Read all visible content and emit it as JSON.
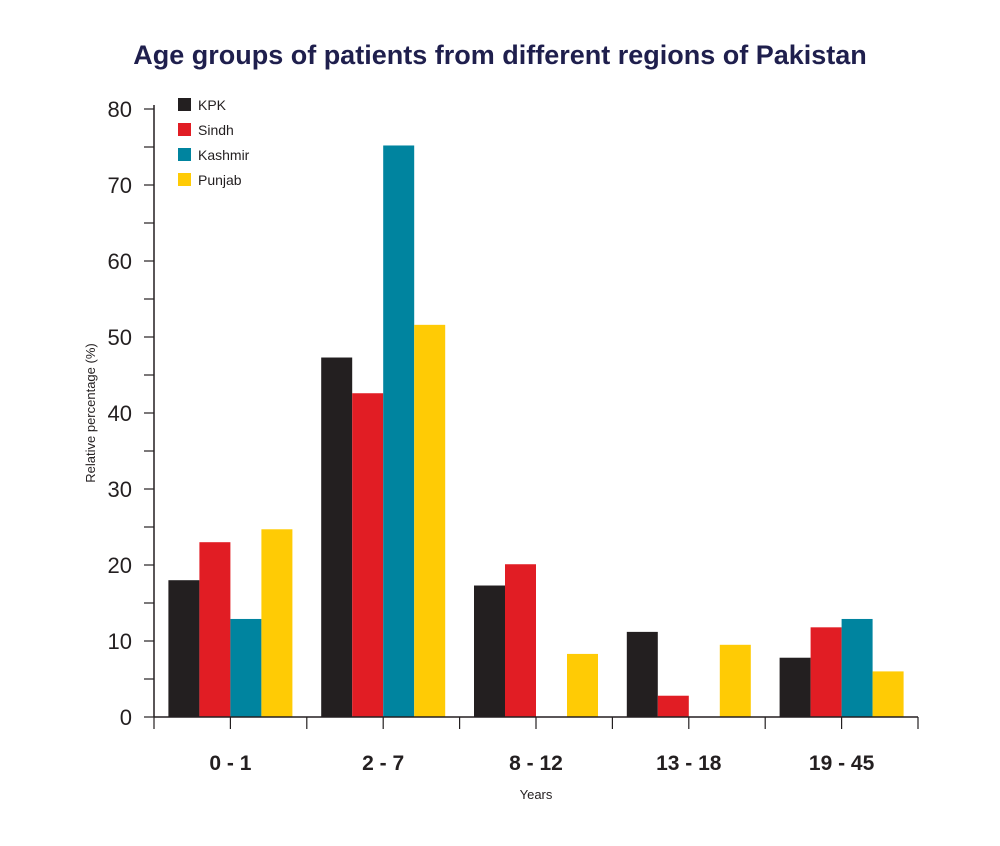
{
  "chart_data": {
    "type": "bar",
    "title": "Age groups of patients from different regions of Pakistan",
    "xlabel": "Years",
    "ylabel": "Relative percentage (%)",
    "categories": [
      "0 - 1",
      "2 - 7",
      "8 - 12",
      "13 - 18",
      "19 - 45"
    ],
    "ylim": [
      0,
      80
    ],
    "yticks": [
      "0",
      "10",
      "20",
      "30",
      "40",
      "50",
      "60",
      "70",
      "80"
    ],
    "legend_position": "top-left",
    "grid": false,
    "series": [
      {
        "name": "KPK",
        "color": "#231f20",
        "values": [
          18,
          47.3,
          17.3,
          11.2,
          7.8
        ]
      },
      {
        "name": "Sindh",
        "color": "#e11d24",
        "values": [
          23,
          42.6,
          20.1,
          2.8,
          11.8
        ]
      },
      {
        "name": "Kashmir",
        "color": "#00849f",
        "values": [
          12.9,
          75.2,
          0,
          0,
          12.9
        ]
      },
      {
        "name": "Punjab",
        "color": "#ffcb05",
        "values": [
          24.7,
          51.6,
          8.3,
          9.5,
          6
        ]
      }
    ]
  }
}
